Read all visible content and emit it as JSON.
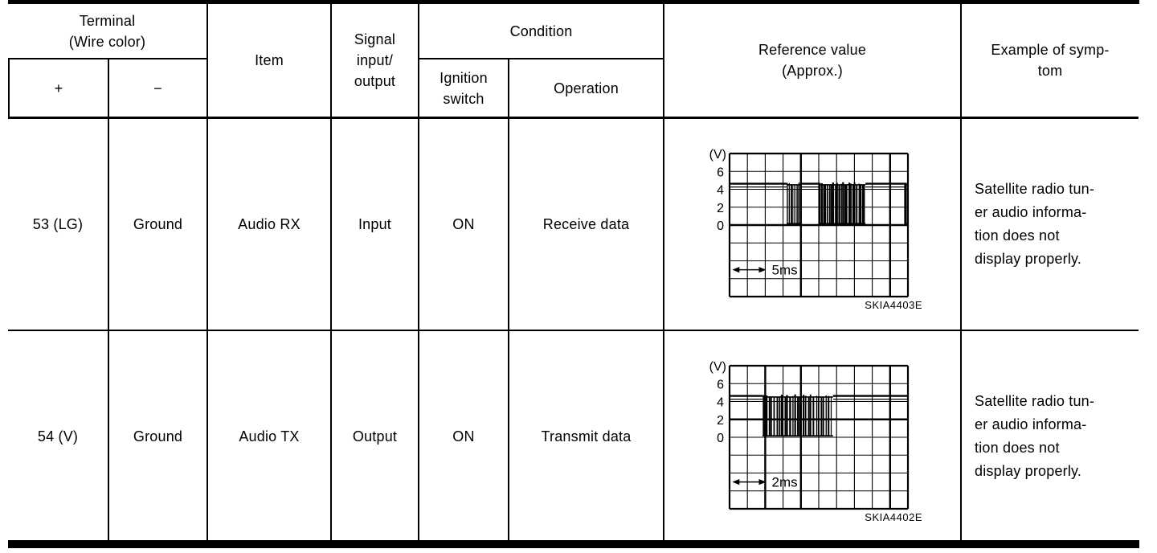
{
  "page": {
    "background": "#ffffff",
    "ink": "#000000"
  },
  "table": {
    "header": {
      "terminal": "Terminal\n(Wire color)",
      "plus": "+",
      "minus": "−",
      "item": "Item",
      "signal": "Signal\ninput/\noutput",
      "condition": "Condition",
      "ignition": "Ignition\nswitch",
      "operation": "Operation",
      "reference": "Reference value\n(Approx.)",
      "symptom": "Example of symp-\ntom"
    },
    "rows": [
      {
        "terminal_plus": "53 (LG)",
        "terminal_minus": "Ground",
        "item": "Audio RX",
        "signal": "Input",
        "ignition_switch": "ON",
        "operation": "Receive data",
        "figure_id": "SKIA4403E",
        "symptom": "Satellite radio tun-\ner audio informa-\ntion does not\ndisplay properly."
      },
      {
        "terminal_plus": "54 (V)",
        "terminal_minus": "Ground",
        "item": "Audio TX",
        "signal": "Output",
        "ignition_switch": "ON",
        "operation": "Transmit data",
        "figure_id": "SKIA4402E",
        "symptom": "Satellite radio tun-\ner audio informa-\ntion does not\ndisplay properly."
      }
    ]
  },
  "chart_data": [
    {
      "type": "line",
      "figure_id": "SKIA4403E",
      "y_unit": "(V)",
      "y_ticks": [
        6,
        4,
        2,
        0
      ],
      "volts_per_division": 2,
      "time_label": "5ms",
      "time_label_span_divisions": 2,
      "grid": {
        "cols": 10,
        "rows": 8,
        "heavy_cols": [
          4,
          9
        ],
        "heavy_rows": [
          4
        ]
      },
      "baseline_volts": 4.5,
      "burst_low_volts": 0.2,
      "signal_segments": [
        {
          "type": "high",
          "from": 0.0,
          "to": 3.2
        },
        {
          "type": "burst",
          "from": 3.2,
          "to": 4.05,
          "pulses": 9,
          "density": 0.55
        },
        {
          "type": "high",
          "from": 4.05,
          "to": 5.0
        },
        {
          "type": "burst",
          "from": 5.0,
          "to": 7.62,
          "pulses": 24,
          "density": 0.8
        },
        {
          "type": "high",
          "from": 7.62,
          "to": 9.8
        },
        {
          "type": "burst",
          "from": 9.8,
          "to": 9.95,
          "pulses": 1,
          "density": 0.8
        },
        {
          "type": "high",
          "from": 9.95,
          "to": 10.0
        }
      ]
    },
    {
      "type": "line",
      "figure_id": "SKIA4402E",
      "y_unit": "(V)",
      "y_ticks": [
        6,
        4,
        2,
        0
      ],
      "volts_per_division": 2,
      "time_label": "2ms",
      "time_label_span_divisions": 2,
      "grid": {
        "cols": 10,
        "rows": 8,
        "heavy_cols": [
          2,
          4,
          9
        ],
        "heavy_rows": [
          3
        ]
      },
      "baseline_volts": 4.5,
      "burst_low_volts": 0.2,
      "signal_segments": [
        {
          "type": "high",
          "from": 0.0,
          "to": 1.85
        },
        {
          "type": "burst",
          "from": 1.85,
          "to": 5.8,
          "pulses": 27,
          "density": 0.58
        },
        {
          "type": "high",
          "from": 5.8,
          "to": 10.0
        }
      ]
    }
  ]
}
